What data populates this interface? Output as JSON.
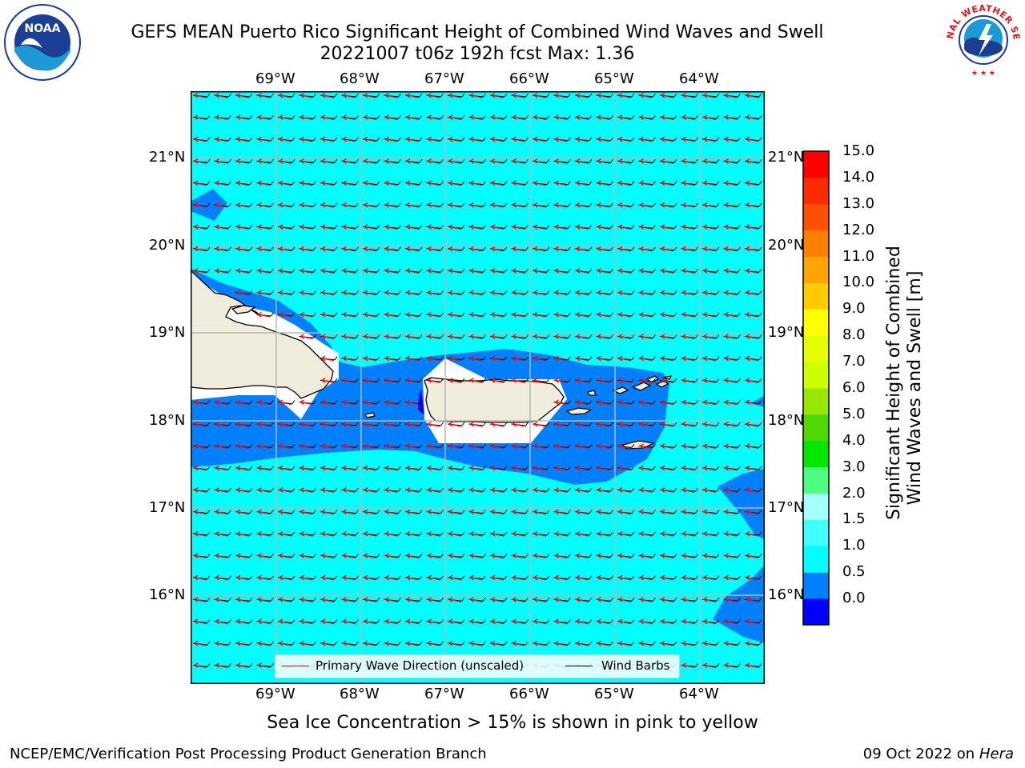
{
  "header": {
    "title_line1": "GEFS MEAN Puerto Rico Significant Height of Combined Wind Waves and Swell",
    "title_line2": "20221007 t06z 192h fcst   Max: 1.36"
  },
  "map": {
    "lon_labels": [
      "69°W",
      "68°W",
      "67°W",
      "66°W",
      "65°W",
      "64°W"
    ],
    "lat_labels": [
      "21°N",
      "20°N",
      "19°N",
      "18°N",
      "17°N",
      "16°N"
    ],
    "ocean_color": "#00ffff",
    "shallow_color": "#0080ff",
    "deep_color": "#0000ff",
    "land_color": "#f0ecdc",
    "arrow_color": "#ff0000",
    "barb_color": "#000000"
  },
  "legend": {
    "wave_direction": "Primary Wave Direction (unscaled)",
    "wind_barbs": "Wind Barbs"
  },
  "colorbar": {
    "title_line1": "Significant Height of Combined",
    "title_line2": "Wind Waves and Swell [m]",
    "labels": [
      "15.0",
      "14.0",
      "13.0",
      "12.0",
      "11.0",
      "10.0",
      "9.0",
      "8.0",
      "7.0",
      "6.0",
      "5.0",
      "4.0",
      "3.0",
      "2.0",
      "1.5",
      "1.0",
      "0.5",
      "0.0"
    ],
    "colors": [
      "#0000ff",
      "#0080ff",
      "#00ffff",
      "#40ffff",
      "#a6ffff",
      "#4dff80",
      "#00e600",
      "#4dd900",
      "#99e600",
      "#ccff00",
      "#e6ff00",
      "#ffff00",
      "#ffcc00",
      "#ffa500",
      "#ff8000",
      "#ff5000",
      "#ff2a00",
      "#ff0000"
    ]
  },
  "caption": "Sea Ice Concentration > 15% is shown in pink to yellow",
  "footer": {
    "left": "NCEP/EMC/Verification Post Processing Product Generation Branch",
    "right_prefix": "09 Oct 2022 on ",
    "right_host": "Hera"
  },
  "logos": {
    "noaa": "NOAA",
    "nws": "NATIONAL WEATHER SERVICE"
  }
}
